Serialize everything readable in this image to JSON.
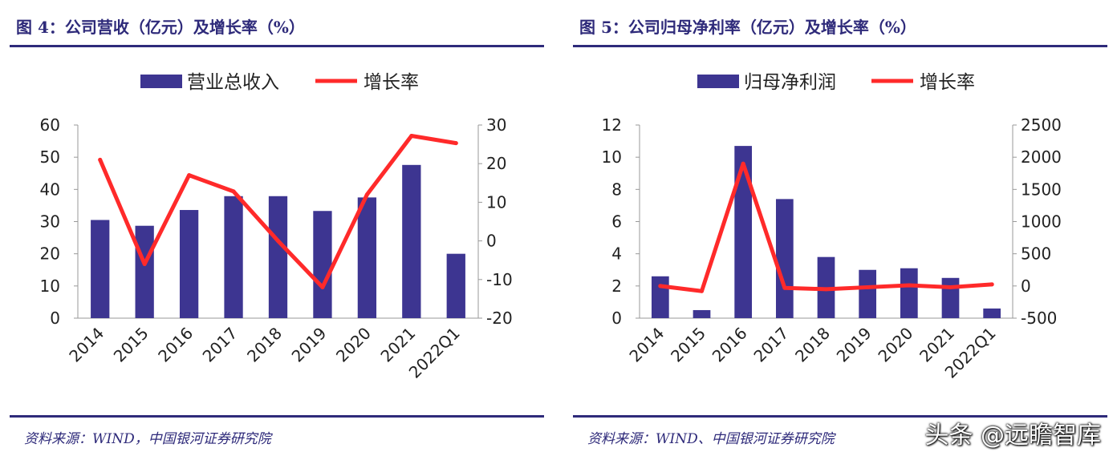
{
  "watermark": "头条 @远瞻智库",
  "charts": [
    {
      "fig_title": "图 4：公司营收（亿元）及增长率（%）",
      "source": "资料来源：WIND，中国银河证券研究院",
      "chart_data": {
        "type": "bar",
        "categories": [
          "2014",
          "2015",
          "2016",
          "2017",
          "2018",
          "2019",
          "2020",
          "2021",
          "2022Q1"
        ],
        "series": [
          {
            "name": "营业总收入",
            "type": "bar",
            "axis": "left",
            "values": [
              30.5,
              28.7,
              33.6,
              37.9,
              37.9,
              33.3,
              37.5,
              47.6,
              20.0
            ]
          },
          {
            "name": "增长率",
            "type": "line",
            "axis": "right",
            "values": [
              21.0,
              -6.0,
              17.0,
              12.8,
              0.0,
              -12.0,
              12.0,
              27.2,
              25.3
            ]
          }
        ],
        "ylim_left": [
          0,
          60
        ],
        "yticks_left": [
          "0",
          "10",
          "20",
          "30",
          "40",
          "50",
          "60"
        ],
        "ylim_right": [
          -20,
          30
        ],
        "yticks_right": [
          "-20",
          "-10",
          "0",
          "10",
          "20",
          "30"
        ],
        "legend_position": "top-center",
        "grid": false,
        "colors": {
          "bar": "#3d3591",
          "line": "#ff2a2a"
        }
      }
    },
    {
      "fig_title": "图 5：公司归母净利率（亿元）及增长率（%）",
      "source": "资料来源：WIND、中国银河证券研究院",
      "chart_data": {
        "type": "bar",
        "categories": [
          "2014",
          "2015",
          "2016",
          "2017",
          "2018",
          "2019",
          "2020",
          "2021",
          "2022Q1"
        ],
        "series": [
          {
            "name": "归母净利润",
            "type": "bar",
            "axis": "left",
            "values": [
              2.6,
              0.5,
              10.7,
              7.4,
              3.8,
              3.0,
              3.1,
              2.5,
              0.6
            ]
          },
          {
            "name": "增长率",
            "type": "line",
            "axis": "right",
            "values": [
              0,
              -80,
              1900,
              -30,
              -50,
              -20,
              10,
              -20,
              25
            ]
          }
        ],
        "ylim_left": [
          0,
          12
        ],
        "yticks_left": [
          "0",
          "2",
          "4",
          "6",
          "8",
          "10",
          "12"
        ],
        "ylim_right": [
          -500,
          2500
        ],
        "yticks_right": [
          "-500",
          "0",
          "500",
          "1000",
          "1500",
          "2000",
          "2500"
        ],
        "legend_position": "top-center",
        "grid": false,
        "colors": {
          "bar": "#3d3591",
          "line": "#ff2a2a"
        }
      }
    }
  ]
}
